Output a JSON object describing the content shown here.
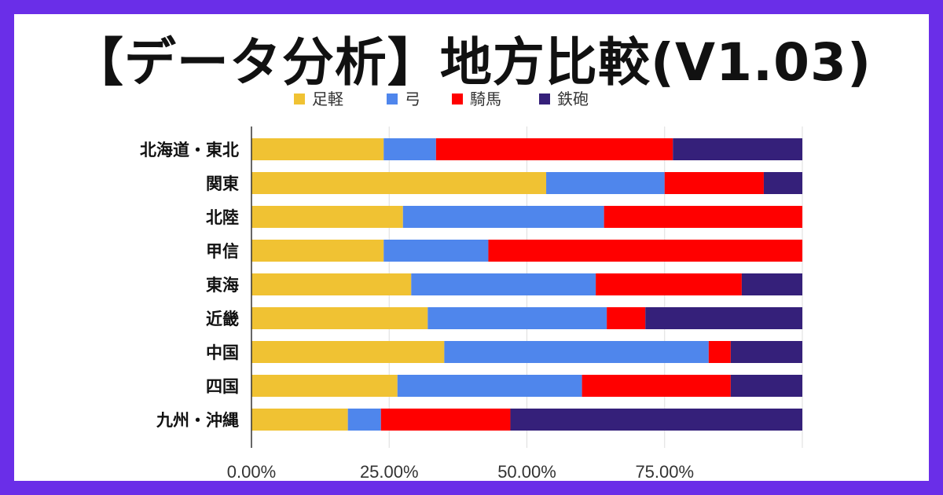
{
  "title": "【データ分析】地方比較(V1.03)",
  "chart_data": {
    "type": "bar",
    "orientation": "horizontal",
    "stacked": true,
    "categories": [
      "北海道・東北",
      "関東",
      "北陸",
      "甲信",
      "東海",
      "近畿",
      "中国",
      "四国",
      "九州・沖縄"
    ],
    "series": [
      {
        "name": "足軽",
        "color": "#f0c233",
        "values": [
          24,
          53.5,
          27.5,
          24,
          29,
          32,
          35,
          26.5,
          17.5
        ]
      },
      {
        "name": "弓",
        "color": "#4f86ec",
        "values": [
          9.5,
          21.5,
          36.5,
          19,
          33.5,
          32.5,
          48,
          33.5,
          6
        ]
      },
      {
        "name": "騎馬",
        "color": "#ff0000",
        "values": [
          43,
          18,
          36,
          57,
          26.5,
          7,
          4,
          27,
          23.5
        ]
      },
      {
        "name": "鉄砲",
        "color": "#35207a",
        "values": [
          23.5,
          7,
          0,
          0,
          11,
          28.5,
          13,
          13,
          53
        ]
      }
    ],
    "x_ticks": [
      "0.00%",
      "25.00%",
      "50.00%",
      "75.00%"
    ],
    "xlim": [
      0,
      100
    ],
    "legend_position": "top",
    "grid": true
  }
}
